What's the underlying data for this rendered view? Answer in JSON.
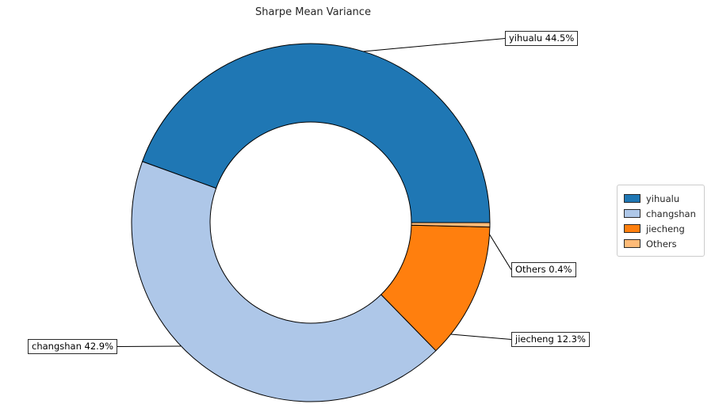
{
  "chart_data": {
    "type": "pie",
    "subtype": "donut",
    "title": "Sharpe Mean Variance",
    "labels": [
      "yihualu",
      "changshan",
      "jiecheng",
      "Others"
    ],
    "values": [
      44.5,
      42.9,
      12.3,
      0.4
    ],
    "unit": "%",
    "colors": [
      "#1f77b4",
      "#aec7e8",
      "#ff7f0e",
      "#ffbb78"
    ],
    "edge_color": "#000000",
    "background": "#ffffff",
    "start_angle": 0,
    "direction": "counterclockwise",
    "inner_radius_ratio": 0.562,
    "legend_position": "center-right",
    "annotations": [
      {
        "slice": "yihualu",
        "text": "yihualu 44.5%"
      },
      {
        "slice": "changshan",
        "text": "changshan 42.9%"
      },
      {
        "slice": "jiecheng",
        "text": "jiecheng 12.3%"
      },
      {
        "slice": "Others",
        "text": "Others 0.4%"
      }
    ]
  },
  "legend": {
    "items": [
      {
        "label": "yihualu",
        "color": "#1f77b4"
      },
      {
        "label": "changshan",
        "color": "#aec7e8"
      },
      {
        "label": "jiecheng",
        "color": "#ff7f0e"
      },
      {
        "label": "Others",
        "color": "#ffbb78"
      }
    ]
  }
}
